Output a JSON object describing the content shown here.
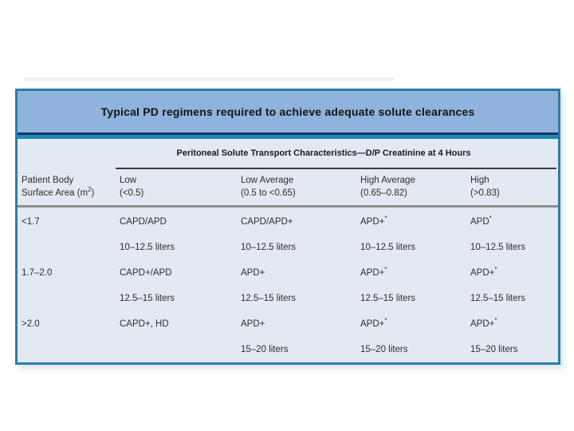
{
  "slide": {
    "background": "#ffffff",
    "decor_line_color": "#f1f1f1"
  },
  "table": {
    "title": "Typical PD regimens required to achieve adequate solute clearances",
    "transport_header": "Peritoneal Solute Transport Characteristics—D/P Creatinine at 4 Hours",
    "bsa_header": {
      "line1": "Patient Body",
      "line2_a": "Surface Area (m",
      "line2_sup": "2",
      "line2_b": ")"
    },
    "columns": [
      {
        "label": "Low",
        "range": "(<0.5)"
      },
      {
        "label": "Low Average",
        "range": "(0.5 to <0.65)"
      },
      {
        "label": "High Average",
        "range": "(0.65–0.82)"
      },
      {
        "label": "High",
        "range": "(>0.83)"
      }
    ],
    "rows": [
      {
        "bsa": "<1.7",
        "cells": [
          {
            "regimen": "CAPD/APD",
            "sup": "",
            "volume": "10–12.5 liters"
          },
          {
            "regimen": "CAPD/APD+",
            "sup": "",
            "volume": "10–12.5 liters"
          },
          {
            "regimen": "APD+",
            "sup": "*",
            "volume": "10–12.5 liters"
          },
          {
            "regimen": "APD",
            "sup": "*",
            "volume": "10–12.5 liters"
          }
        ]
      },
      {
        "bsa": "1.7–2.0",
        "cells": [
          {
            "regimen": "CAPD+/APD",
            "sup": "",
            "volume": "12.5–15 liters"
          },
          {
            "regimen": "APD+",
            "sup": "",
            "volume": "12.5–15 liters"
          },
          {
            "regimen": "APD+",
            "sup": "*",
            "volume": "12.5–15 liters"
          },
          {
            "regimen": "APD+",
            "sup": "*",
            "volume": "12.5–15 liters"
          }
        ]
      },
      {
        "bsa": ">2.0",
        "cells": [
          {
            "regimen": "CAPD+, HD",
            "sup": "",
            "volume": ""
          },
          {
            "regimen": "APD+",
            "sup": "",
            "volume": "15–20 liters"
          },
          {
            "regimen": "APD+",
            "sup": "*",
            "volume": "15–20 liters"
          },
          {
            "regimen": "APD+",
            "sup": "*",
            "volume": "15–20 liters"
          }
        ]
      }
    ],
    "colors": {
      "border": "#2a7da8",
      "title_band": "#8fb3dc",
      "navy_rule": "#17375e",
      "teal_rule": "#1d87bb",
      "body_bg": "#e3e9f3",
      "gray_rule": "#8d8d8d",
      "text": "#2d2d2d"
    }
  }
}
